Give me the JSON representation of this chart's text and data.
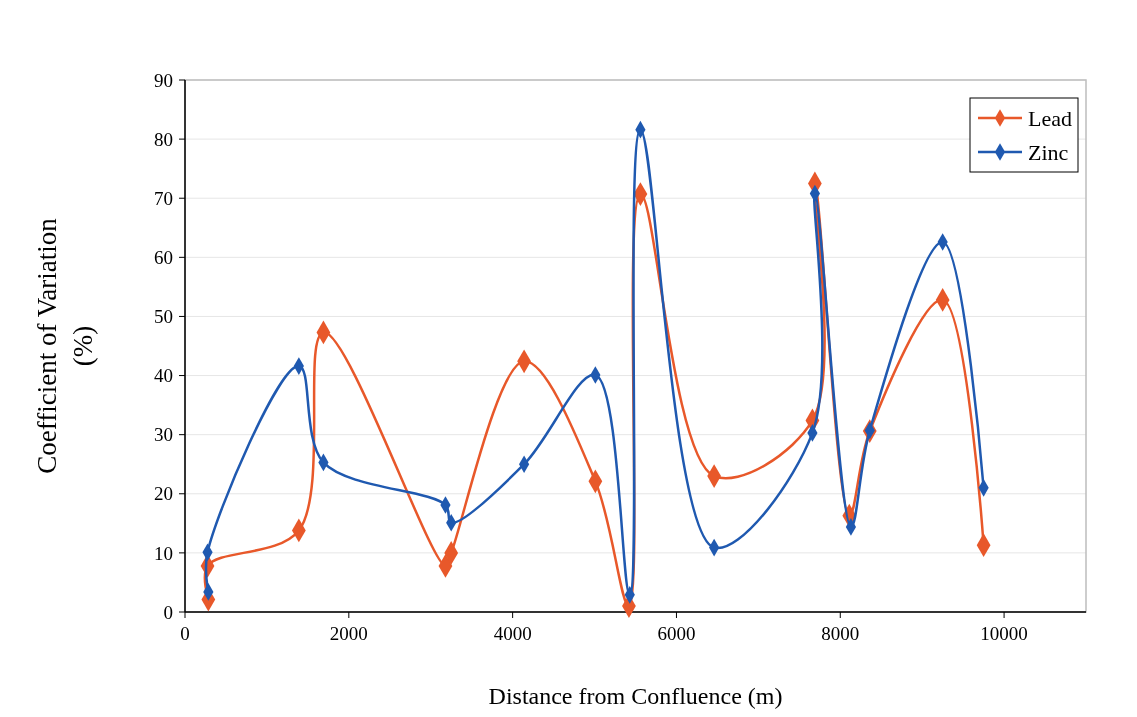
{
  "chart_data": {
    "type": "line",
    "xlabel": "Distance from Confluence (m)",
    "ylabel": "Coefficient of Variation (%)",
    "xlim": [
      0,
      11000
    ],
    "xticks": [
      0,
      2000,
      4000,
      6000,
      8000,
      10000
    ],
    "ylim": [
      0,
      90
    ],
    "yticks": [
      0,
      10,
      20,
      30,
      40,
      50,
      60,
      70,
      80,
      90
    ],
    "grid": "y",
    "legend": "top right",
    "marker": "diamond",
    "line_style": "solid",
    "series": [
      {
        "name": "Lead",
        "color": "#e8582a",
        "x": [
          285,
          275,
          1390,
          1690,
          3180,
          3250,
          4140,
          5010,
          5420,
          5560,
          6460,
          7660,
          7690,
          8110,
          8360,
          9250,
          9750
        ],
        "values": [
          2.1,
          7.8,
          13.8,
          47.3,
          7.8,
          10,
          42.4,
          22.1,
          1,
          70.7,
          23,
          32.4,
          72.5,
          16.3,
          30.6,
          52.8,
          11.3
        ]
      },
      {
        "name": "Zinc",
        "color": "#1f59b0",
        "x": [
          285,
          275,
          1390,
          1690,
          3180,
          3250,
          4140,
          5010,
          5430,
          5560,
          6460,
          7660,
          7690,
          8130,
          8360,
          9250,
          9750
        ],
        "values": [
          3.4,
          10.1,
          41.6,
          25.3,
          18.1,
          15.1,
          25,
          40.1,
          2.9,
          81.6,
          10.9,
          30.3,
          70.8,
          14.4,
          30.7,
          62.6,
          21
        ]
      }
    ]
  }
}
